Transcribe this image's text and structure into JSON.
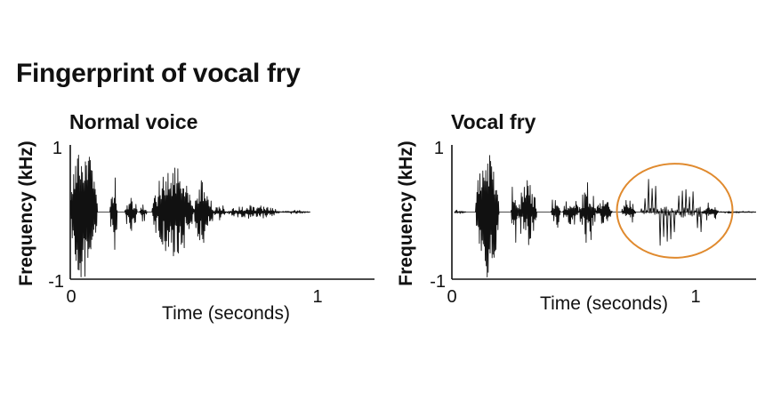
{
  "figure": {
    "title": "Fingerprint of vocal fry",
    "colors": {
      "waveform": "#111111",
      "axis": "#111111",
      "highlight": "#e08a2e"
    }
  },
  "chart_data": [
    {
      "type": "line",
      "title": "Normal voice",
      "xlabel": "Time (seconds)",
      "ylabel": "Frequency (kHz)",
      "xlim": [
        0,
        1.23
      ],
      "ylim": [
        -1,
        1
      ],
      "x_ticks": [
        0,
        1
      ],
      "y_ticks": [
        -1,
        1
      ],
      "grid": false,
      "series": [
        {
          "bursts": [
            {
              "start": 0.0,
              "end": 0.11,
              "amp": 1.0,
              "density": 1.0
            },
            {
              "start": 0.16,
              "end": 0.19,
              "amp": 0.65,
              "density": 0.6
            },
            {
              "start": 0.22,
              "end": 0.27,
              "amp": 0.3,
              "density": 0.5
            },
            {
              "start": 0.28,
              "end": 0.31,
              "amp": 0.15,
              "density": 0.5
            },
            {
              "start": 0.33,
              "end": 0.5,
              "amp": 0.7,
              "density": 0.8
            },
            {
              "start": 0.5,
              "end": 0.58,
              "amp": 0.5,
              "density": 0.6
            },
            {
              "start": 0.58,
              "end": 0.63,
              "amp": 0.12,
              "density": 0.5
            },
            {
              "start": 0.63,
              "end": 0.85,
              "amp": 0.1,
              "density": 0.5
            },
            {
              "start": 0.85,
              "end": 0.97,
              "amp": 0.03,
              "density": 0.3
            }
          ]
        }
      ]
    },
    {
      "type": "line",
      "title": "Vocal fry",
      "xlabel": "Time (seconds)",
      "ylabel": "Frequency (kHz)",
      "xlim": [
        -0.06,
        1.23
      ],
      "ylim": [
        -1,
        1
      ],
      "x_ticks": [
        0,
        1
      ],
      "y_ticks": [
        -1,
        1
      ],
      "grid": false,
      "highlight": {
        "type": "ellipse",
        "x_range": [
          0.64,
          1.13
        ],
        "y_range": [
          -0.68,
          0.72
        ]
      },
      "series": [
        {
          "bursts": [
            {
              "start": -0.05,
              "end": 0.0,
              "amp": 0.04,
              "density": 0.3
            },
            {
              "start": 0.04,
              "end": 0.14,
              "amp": 1.0,
              "density": 1.0
            },
            {
              "start": 0.19,
              "end": 0.22,
              "amp": 0.55,
              "density": 0.6
            },
            {
              "start": 0.22,
              "end": 0.3,
              "amp": 0.5,
              "density": 0.7
            },
            {
              "start": 0.36,
              "end": 0.4,
              "amp": 0.3,
              "density": 0.5
            },
            {
              "start": 0.41,
              "end": 0.48,
              "amp": 0.22,
              "density": 0.6
            },
            {
              "start": 0.48,
              "end": 0.55,
              "amp": 0.48,
              "density": 0.6
            },
            {
              "start": 0.55,
              "end": 0.62,
              "amp": 0.18,
              "density": 0.6
            },
            {
              "start": 0.66,
              "end": 0.72,
              "amp": 0.2,
              "density": 0.5
            },
            {
              "start": 0.74,
              "end": 1.0,
              "amp": 0.65,
              "density": 0.35,
              "fry": true
            },
            {
              "start": 1.0,
              "end": 1.07,
              "amp": 0.15,
              "density": 0.4
            },
            {
              "start": 1.07,
              "end": 1.23,
              "amp": 0.02,
              "density": 0.3
            }
          ]
        }
      ]
    }
  ]
}
